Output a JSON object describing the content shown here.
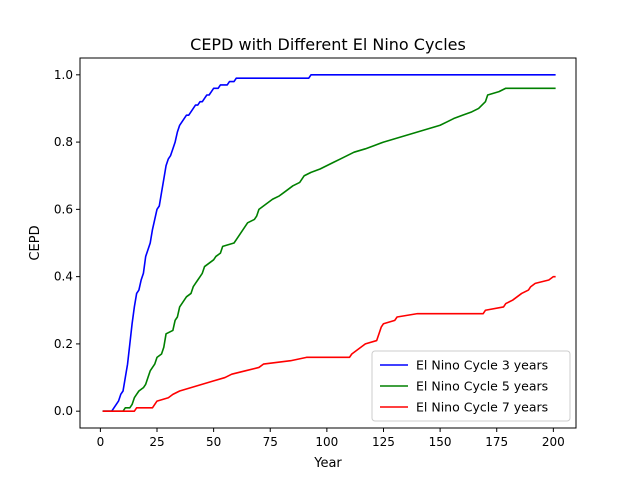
{
  "chart_data": {
    "type": "line",
    "title": "CEPD with Different El Nino Cycles",
    "xlabel": "Year",
    "ylabel": "CEPD",
    "xlim": [
      -9,
      210
    ],
    "ylim": [
      -0.05,
      1.05
    ],
    "xticks": [
      "0",
      "25",
      "50",
      "75",
      "100",
      "125",
      "150",
      "175",
      "200"
    ],
    "yticks": [
      "0.0",
      "0.2",
      "0.4",
      "0.6",
      "0.8",
      "1.0"
    ],
    "grid": false,
    "legend_position": "lower right",
    "series": [
      {
        "name": "El Nino Cycle 3 years",
        "color": "#0000ff",
        "points": [
          [
            1,
            0
          ],
          [
            5,
            0
          ],
          [
            6,
            0.01
          ],
          [
            7,
            0.02
          ],
          [
            8,
            0.03
          ],
          [
            9,
            0.05
          ],
          [
            10,
            0.06
          ],
          [
            11,
            0.1
          ],
          [
            12,
            0.14
          ],
          [
            13,
            0.2
          ],
          [
            14,
            0.26
          ],
          [
            15,
            0.31
          ],
          [
            16,
            0.35
          ],
          [
            17,
            0.36
          ],
          [
            18,
            0.39
          ],
          [
            19,
            0.41
          ],
          [
            20,
            0.46
          ],
          [
            21,
            0.48
          ],
          [
            22,
            0.5
          ],
          [
            23,
            0.54
          ],
          [
            24,
            0.57
          ],
          [
            25,
            0.6
          ],
          [
            26,
            0.61
          ],
          [
            27,
            0.65
          ],
          [
            28,
            0.69
          ],
          [
            29,
            0.73
          ],
          [
            30,
            0.75
          ],
          [
            31,
            0.76
          ],
          [
            32,
            0.78
          ],
          [
            33,
            0.8
          ],
          [
            34,
            0.83
          ],
          [
            35,
            0.85
          ],
          [
            36,
            0.86
          ],
          [
            37,
            0.87
          ],
          [
            38,
            0.88
          ],
          [
            39,
            0.88
          ],
          [
            40,
            0.89
          ],
          [
            41,
            0.9
          ],
          [
            42,
            0.91
          ],
          [
            43,
            0.91
          ],
          [
            44,
            0.92
          ],
          [
            45,
            0.92
          ],
          [
            46,
            0.93
          ],
          [
            47,
            0.94
          ],
          [
            48,
            0.94
          ],
          [
            49,
            0.95
          ],
          [
            50,
            0.96
          ],
          [
            52,
            0.96
          ],
          [
            53,
            0.97
          ],
          [
            56,
            0.97
          ],
          [
            57,
            0.98
          ],
          [
            59,
            0.98
          ],
          [
            60,
            0.99
          ],
          [
            92,
            0.99
          ],
          [
            93,
            1.0
          ],
          [
            201,
            1.0
          ]
        ]
      },
      {
        "name": "El Nino Cycle 5 years",
        "color": "#008000",
        "points": [
          [
            1,
            0
          ],
          [
            10,
            0
          ],
          [
            11,
            0.01
          ],
          [
            13,
            0.01
          ],
          [
            14,
            0.02
          ],
          [
            15,
            0.04
          ],
          [
            16,
            0.05
          ],
          [
            17,
            0.06
          ],
          [
            19,
            0.07
          ],
          [
            20,
            0.08
          ],
          [
            21,
            0.1
          ],
          [
            22,
            0.12
          ],
          [
            23,
            0.13
          ],
          [
            24,
            0.14
          ],
          [
            25,
            0.16
          ],
          [
            27,
            0.17
          ],
          [
            28,
            0.19
          ],
          [
            29,
            0.23
          ],
          [
            32,
            0.24
          ],
          [
            33,
            0.27
          ],
          [
            34,
            0.28
          ],
          [
            35,
            0.31
          ],
          [
            36,
            0.32
          ],
          [
            37,
            0.33
          ],
          [
            38,
            0.34
          ],
          [
            40,
            0.35
          ],
          [
            41,
            0.37
          ],
          [
            42,
            0.38
          ],
          [
            43,
            0.39
          ],
          [
            44,
            0.4
          ],
          [
            45,
            0.41
          ],
          [
            46,
            0.43
          ],
          [
            48,
            0.44
          ],
          [
            50,
            0.45
          ],
          [
            51,
            0.46
          ],
          [
            53,
            0.47
          ],
          [
            54,
            0.49
          ],
          [
            59,
            0.5
          ],
          [
            60,
            0.51
          ],
          [
            61,
            0.52
          ],
          [
            63,
            0.54
          ],
          [
            64,
            0.55
          ],
          [
            65,
            0.56
          ],
          [
            68,
            0.57
          ],
          [
            69,
            0.58
          ],
          [
            70,
            0.6
          ],
          [
            72,
            0.61
          ],
          [
            74,
            0.62
          ],
          [
            76,
            0.63
          ],
          [
            79,
            0.64
          ],
          [
            81,
            0.65
          ],
          [
            83,
            0.66
          ],
          [
            85,
            0.67
          ],
          [
            88,
            0.68
          ],
          [
            90,
            0.7
          ],
          [
            93,
            0.71
          ],
          [
            97,
            0.72
          ],
          [
            100,
            0.73
          ],
          [
            103,
            0.74
          ],
          [
            106,
            0.75
          ],
          [
            109,
            0.76
          ],
          [
            112,
            0.77
          ],
          [
            117,
            0.78
          ],
          [
            121,
            0.79
          ],
          [
            125,
            0.8
          ],
          [
            130,
            0.81
          ],
          [
            135,
            0.82
          ],
          [
            140,
            0.83
          ],
          [
            145,
            0.84
          ],
          [
            150,
            0.85
          ],
          [
            153,
            0.86
          ],
          [
            156,
            0.87
          ],
          [
            160,
            0.88
          ],
          [
            164,
            0.89
          ],
          [
            167,
            0.9
          ],
          [
            170,
            0.92
          ],
          [
            171,
            0.94
          ],
          [
            176,
            0.95
          ],
          [
            179,
            0.96
          ],
          [
            201,
            0.96
          ]
        ]
      },
      {
        "name": "El Nino Cycle 7 years",
        "color": "#ff0000",
        "points": [
          [
            1,
            0
          ],
          [
            15,
            0
          ],
          [
            16,
            0.01
          ],
          [
            23,
            0.01
          ],
          [
            24,
            0.02
          ],
          [
            25,
            0.03
          ],
          [
            30,
            0.04
          ],
          [
            32,
            0.05
          ],
          [
            35,
            0.06
          ],
          [
            40,
            0.07
          ],
          [
            45,
            0.08
          ],
          [
            50,
            0.09
          ],
          [
            55,
            0.1
          ],
          [
            58,
            0.11
          ],
          [
            64,
            0.12
          ],
          [
            70,
            0.13
          ],
          [
            72,
            0.14
          ],
          [
            84,
            0.15
          ],
          [
            91,
            0.16
          ],
          [
            110,
            0.16
          ],
          [
            111,
            0.17
          ],
          [
            113,
            0.18
          ],
          [
            115,
            0.19
          ],
          [
            117,
            0.2
          ],
          [
            122,
            0.21
          ],
          [
            123,
            0.23
          ],
          [
            124,
            0.25
          ],
          [
            125,
            0.26
          ],
          [
            130,
            0.27
          ],
          [
            131,
            0.28
          ],
          [
            140,
            0.29
          ],
          [
            169,
            0.29
          ],
          [
            170,
            0.3
          ],
          [
            178,
            0.31
          ],
          [
            179,
            0.32
          ],
          [
            182,
            0.33
          ],
          [
            184,
            0.34
          ],
          [
            186,
            0.35
          ],
          [
            189,
            0.36
          ],
          [
            190,
            0.37
          ],
          [
            192,
            0.38
          ],
          [
            198,
            0.39
          ],
          [
            200,
            0.4
          ],
          [
            201,
            0.4
          ]
        ]
      }
    ]
  }
}
